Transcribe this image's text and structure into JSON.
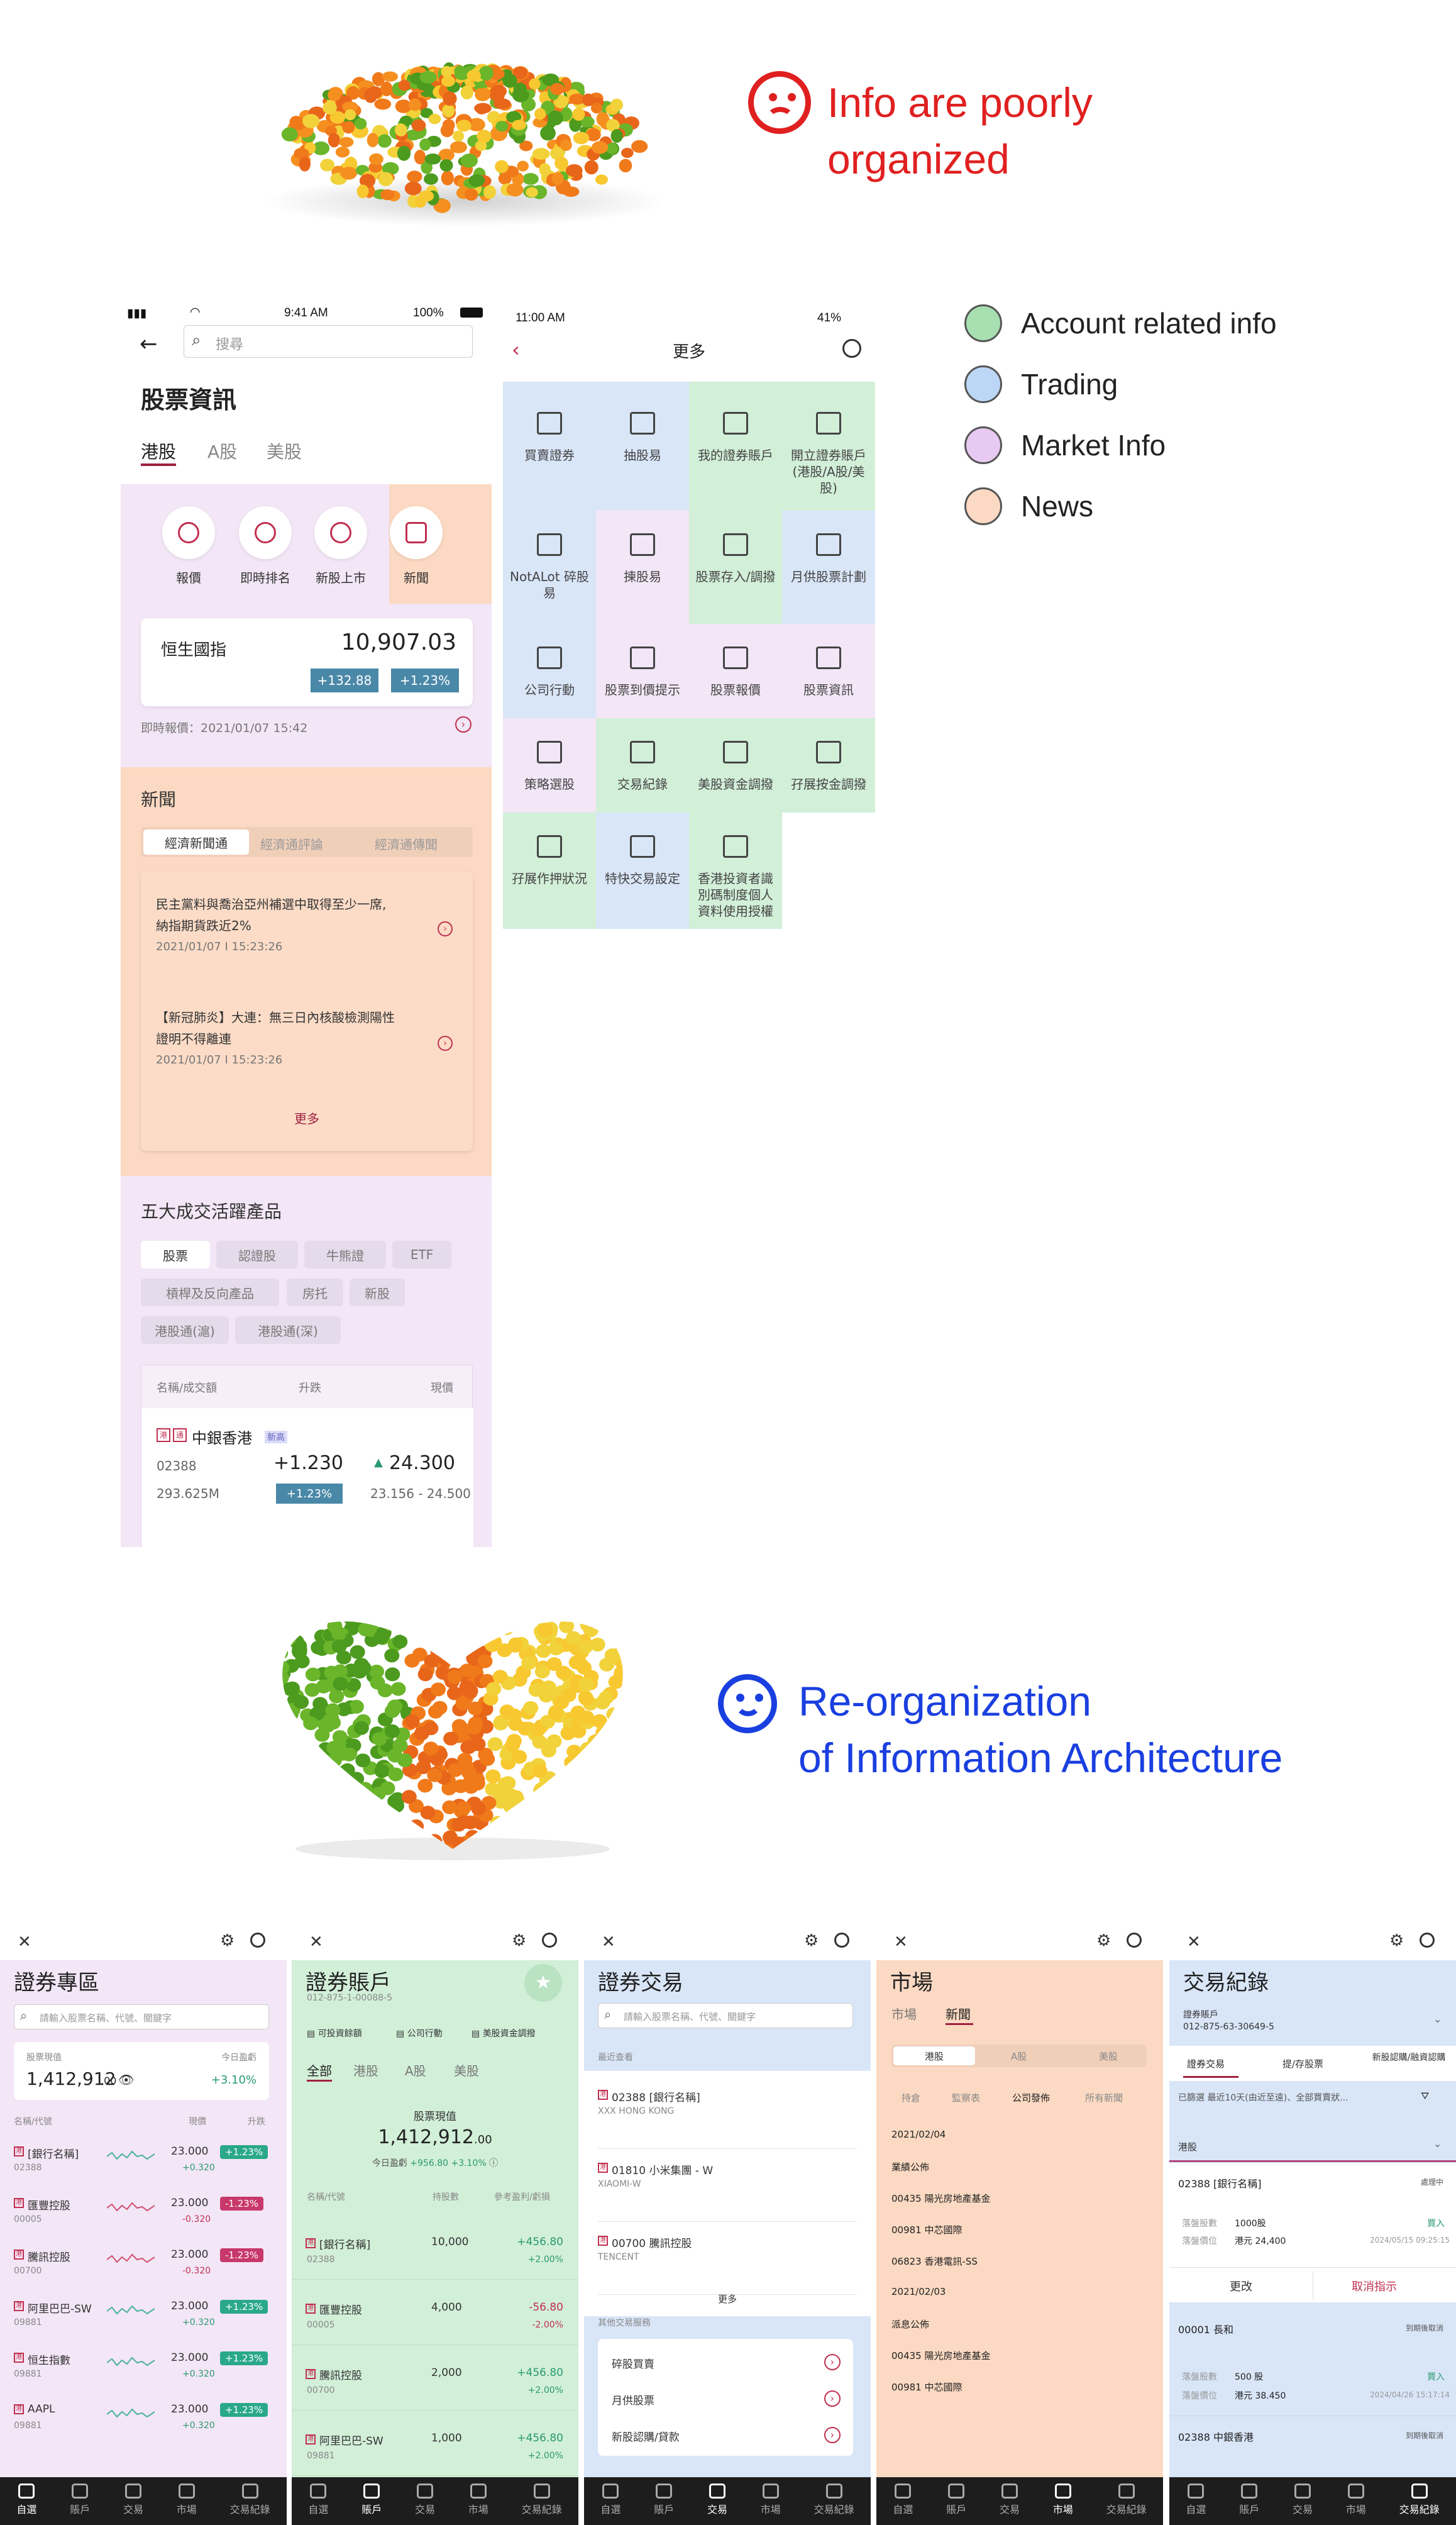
{
  "hero_top": {
    "line1": "Info are poorly",
    "line2": "organized"
  },
  "legend": [
    {
      "label": "Account related info",
      "color": "#a8dfb1"
    },
    {
      "label": "Trading",
      "color": "#bcd6f6"
    },
    {
      "label": "Market Info",
      "color": "#e7c9f2"
    },
    {
      "label": "News",
      "color": "#fbd9c2"
    }
  ],
  "hero_bottom": {
    "line1": "Re-organization",
    "line2": "of Information Architecture"
  },
  "phone1": {
    "time": "9:41 AM",
    "battery": "100%",
    "search_placeholder": "搜尋",
    "title": "股票資訊",
    "tabs": [
      "港股",
      "A股",
      "美股"
    ],
    "shortcuts": [
      "報價",
      "即時排名",
      "新股上市",
      "新聞"
    ],
    "index_name": "恒生國指",
    "index_value": "10,907.03",
    "index_change": "+132.88",
    "index_pct": "+1.23%",
    "quote_time": "即時報價：2021/01/07 15:42",
    "news_title": "新聞",
    "news_tabs": [
      "經濟新聞通",
      "經濟通評論",
      "經濟通傳聞"
    ],
    "news": [
      {
        "line1": "民主黨料與喬治亞州補選中取得至少一席,",
        "line2": "納指期貨跌近2%",
        "time": "2021/01/07 Ι 15:23:26"
      },
      {
        "line1": "【新冠肺炎】大連：無三日內核酸檢測陽性",
        "line2": "證明不得離連",
        "time": "2021/01/07 Ι 15:23:26"
      }
    ],
    "more": "更多",
    "products_title": "五大成交活躍產品",
    "chips": [
      "股票",
      "認證股",
      "牛熊證",
      "ETF",
      "槓桿及反向產品",
      "房托",
      "新股",
      "港股通(滬)",
      "港股通(深)"
    ],
    "table_head": [
      "名稱/成交額",
      "升跌",
      "現價"
    ],
    "stock": {
      "name": "中銀香港",
      "badge": "新高",
      "code": "02388",
      "change": "+1.230",
      "price": "24.300",
      "volume": "293.625M",
      "pct": "+1.23%",
      "range": "23.156 - 24.500"
    }
  },
  "phone2": {
    "time": "11:00 AM",
    "battery": "41%",
    "title": "更多",
    "cells": [
      "買賣證券",
      "抽股易",
      "我的證券賬戶",
      "開立證券賬戶\n(港股/A股/美\n股)",
      "NotALot 碎股\n易",
      "揀股易",
      "股票存入/調撥",
      "月供股票計劃",
      "公司行動",
      "股票到價提示",
      "股票報價",
      "股票資訊",
      "策略選股",
      "交易紀錄",
      "美股資金調撥",
      "孖展按金調撥",
      "孖展作押狀況",
      "特快交易設定",
      "香港投資者識\n別碼制度個人\n資料使用授權"
    ]
  },
  "tabbar": [
    "自選",
    "賬戶",
    "交易",
    "市場",
    "交易紀錄"
  ],
  "b1": {
    "title": "證券專區",
    "search": "請輸入股票名稱、代號、關鍵字",
    "value_label": "股票現值",
    "value": "1,412,912",
    "value_dec": ".00",
    "day_label": "今日盈虧",
    "day": "+3.10%",
    "head": [
      "名稱/代號",
      "現價",
      "升跌"
    ],
    "rows": [
      {
        "name": "[銀行名稱]",
        "code": "02388",
        "price": "23.000",
        "chg": "+0.320",
        "pct": "+1.23%"
      },
      {
        "name": "匯豐控股",
        "code": "00005",
        "price": "23.000",
        "chg": "-0.320",
        "pct": "-1.23%"
      },
      {
        "name": "騰訊控股",
        "code": "00700",
        "price": "23.000",
        "chg": "-0.320",
        "pct": "-1.23%"
      },
      {
        "name": "阿里巴巴-SW",
        "code": "09881",
        "price": "23.000",
        "chg": "+0.320",
        "pct": "+1.23%"
      },
      {
        "name": "恒生指數",
        "code": "09881",
        "price": "23.000",
        "chg": "+0.320",
        "pct": "+1.23%"
      },
      {
        "name": "AAPL",
        "code": "09881",
        "price": "23.000",
        "chg": "+0.320",
        "pct": "+1.23%"
      }
    ]
  },
  "b2": {
    "title": "證券賬戶",
    "account": "012-875-1-00088-5",
    "actions": [
      "可投資餘額",
      "公司行動",
      "美股資金調撥"
    ],
    "tabs": [
      "全部",
      "港股",
      "A股",
      "美股"
    ],
    "value_label": "股票現值",
    "value": "1,412,912",
    "value_dec": ".00",
    "day_label": "今日盈虧",
    "day": "+956.80",
    "day_pct": "+3.10%",
    "head": [
      "名稱/代號",
      "持股數",
      "參考盈利/虧損"
    ],
    "rows": [
      {
        "name": "[銀行名稱]",
        "code": "02388",
        "qty": "10,000",
        "pl": "+456.80",
        "pct": "+2.00%"
      },
      {
        "name": "匯豐控股",
        "code": "00005",
        "qty": "4,000",
        "pl": "-56.80",
        "pct": "-2.00%"
      },
      {
        "name": "騰訊控股",
        "code": "00700",
        "qty": "2,000",
        "pl": "+456.80",
        "pct": "+2.00%"
      },
      {
        "name": "阿里巴巴-SW",
        "code": "09881",
        "qty": "1,000",
        "pl": "+456.80",
        "pct": "+2.00%"
      }
    ]
  },
  "b3": {
    "title": "證券交易",
    "search": "請輸入股票名稱、代號、關鍵字",
    "recent": "最近查看",
    "rows": [
      {
        "name": "02388 [銀行名稱]",
        "sub": "XXX HONG KONG"
      },
      {
        "name": "01810 小米集團 - W",
        "sub": "XIAOMI-W"
      },
      {
        "name": "00700 騰訊控股",
        "sub": "TENCENT"
      }
    ],
    "more": "更多",
    "other": "其他交易服務",
    "services": [
      "碎股買賣",
      "月供股票",
      "新股認購/貸款"
    ]
  },
  "b4": {
    "title": "市場",
    "tabs": [
      "市場",
      "新聞"
    ],
    "seg": [
      "港股",
      "A股",
      "美股"
    ],
    "sub": [
      "持倉",
      "監察表",
      "公司發佈",
      "所有新聞"
    ],
    "items": [
      "2021/02/04",
      "業績公佈",
      "00435 陽光房地產基金",
      "00981 中芯國際",
      "06823 香港電訊-SS",
      "2021/02/03",
      "派息公佈",
      "00435 陽光房地產基金",
      "00981 中芯國際"
    ]
  },
  "b5": {
    "title": "交易紀錄",
    "account_label": "證券賬戶",
    "account": "012-875-63-30649-5",
    "tabs": [
      "證券交易",
      "提/存股票",
      "新股認購/融資認購"
    ],
    "filter": "已篩選 最近10天(由近至遠)、全部買賣狀...",
    "market": "港股",
    "order1": {
      "name": "02388 [銀行名稱]",
      "status": "處理中",
      "qty_label": "落盤股數",
      "qty": "1000股",
      "side": "買入",
      "price_label": "落盤價位",
      "price": "港元 24,400",
      "time": "2024/05/15 09:25:15"
    },
    "edit": "更改",
    "cancel": "取消指示",
    "order2": {
      "name": "00001 長和",
      "status": "到期後取消",
      "qty_label": "落盤股數",
      "qty": "500 股",
      "side": "買入",
      "price_label": "落盤價位",
      "price": "港元 38.450",
      "time": "2024/04/26 15:17:14"
    },
    "order3": {
      "name": "02388 中銀香港",
      "status": "到期後取消"
    }
  }
}
